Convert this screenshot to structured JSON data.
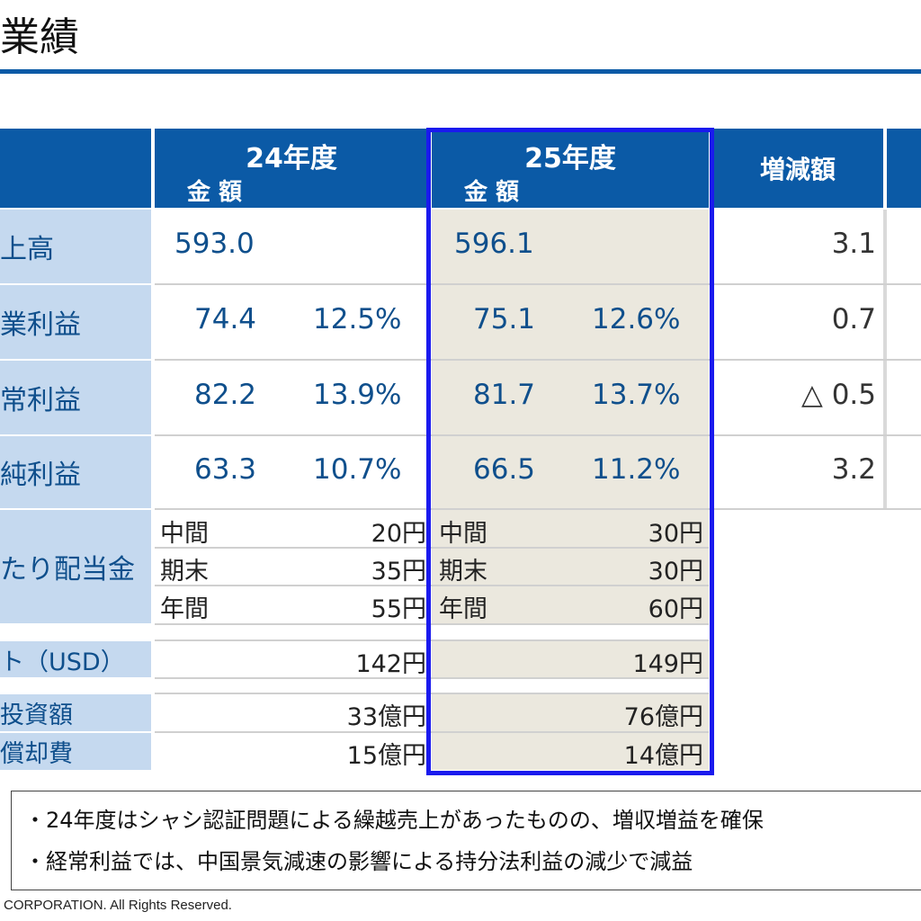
{
  "title": "業績",
  "headers": {
    "fy24": "24年度",
    "fy25": "25年度",
    "amount": "金 額",
    "change": "増減額"
  },
  "rows": [
    {
      "label": "上高",
      "fy24_amount": "593.0",
      "fy24_ratio": "",
      "fy25_amount": "596.1",
      "fy25_ratio": "",
      "change": "3.1"
    },
    {
      "label": "業利益",
      "fy24_amount": "74.4",
      "fy24_ratio": "12.5%",
      "fy25_amount": "75.1",
      "fy25_ratio": "12.6%",
      "change": "0.7"
    },
    {
      "label": "常利益",
      "fy24_amount": "82.2",
      "fy24_ratio": "13.9%",
      "fy25_amount": "81.7",
      "fy25_ratio": "13.7%",
      "change": "△ 0.5"
    },
    {
      "label": "純利益",
      "fy24_amount": "63.3",
      "fy24_ratio": "10.7%",
      "fy25_amount": "66.5",
      "fy25_ratio": "11.2%",
      "change": "3.2"
    }
  ],
  "dividend": {
    "label": "たり配当金",
    "fy24": [
      {
        "period": "中間",
        "value": "20円"
      },
      {
        "period": "期末",
        "value": "35円"
      },
      {
        "period": "年間",
        "value": "55円"
      }
    ],
    "fy25": [
      {
        "period": "中間",
        "value": "30円"
      },
      {
        "period": "期末",
        "value": "30円"
      },
      {
        "period": "年間",
        "value": "60円"
      }
    ]
  },
  "exchange": {
    "label": "ト（USD）",
    "fy24": "142円",
    "fy25": "149円"
  },
  "capex": {
    "label": "投資額",
    "fy24": "33億円",
    "fy25": "76億円"
  },
  "depreciation": {
    "label": "償却費",
    "fy24": "15億円",
    "fy25": "14億円"
  },
  "notes": [
    "・24年度はシャシ認証問題による繰越売上があったものの、増収増益を確保",
    "・経常利益では、中国景気減速の影響による持分法利益の減少で減益"
  ],
  "footer": "CORPORATION. All Rights Reserved.",
  "colors": {
    "header": "#0b5aa6",
    "label_bg": "#c5d9ef",
    "highlight_bg": "#ebe8de",
    "highlight_border": "#1a1aee"
  }
}
